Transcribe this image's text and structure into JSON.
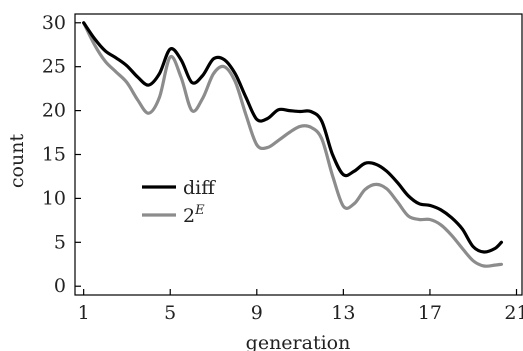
{
  "chart_data": {
    "type": "line",
    "xlabel": "generation",
    "ylabel": "count",
    "xlim": [
      0.6,
      21.3
    ],
    "ylim": [
      -1,
      31
    ],
    "xticks": [
      1,
      5,
      9,
      13,
      17,
      21
    ],
    "yticks": [
      0,
      5,
      10,
      15,
      20,
      25,
      30
    ],
    "grid": false,
    "legend_position": "center-left",
    "series": [
      {
        "name": "diff",
        "color": "#000000",
        "points": [
          [
            1,
            30
          ],
          [
            1.5,
            28.2
          ],
          [
            2,
            26.8
          ],
          [
            2.5,
            26
          ],
          [
            3,
            25.1
          ],
          [
            3.5,
            23.8
          ],
          [
            4,
            22.9
          ],
          [
            4.5,
            24.2
          ],
          [
            5,
            27.0
          ],
          [
            5.5,
            25.8
          ],
          [
            6,
            23.2
          ],
          [
            6.5,
            24.0
          ],
          [
            7,
            25.9
          ],
          [
            7.5,
            25.8
          ],
          [
            8,
            24.2
          ],
          [
            8.5,
            21.5
          ],
          [
            9,
            19.0
          ],
          [
            9.5,
            19.1
          ],
          [
            10,
            20.1
          ],
          [
            10.5,
            20.0
          ],
          [
            11,
            19.9
          ],
          [
            11.5,
            19.9
          ],
          [
            12,
            18.8
          ],
          [
            12.5,
            15.0
          ],
          [
            13,
            12.7
          ],
          [
            13.5,
            13.1
          ],
          [
            14,
            14.0
          ],
          [
            14.5,
            13.9
          ],
          [
            15,
            13.1
          ],
          [
            15.5,
            11.8
          ],
          [
            16,
            10.3
          ],
          [
            16.5,
            9.4
          ],
          [
            17,
            9.2
          ],
          [
            17.5,
            8.7
          ],
          [
            18,
            7.8
          ],
          [
            18.5,
            6.5
          ],
          [
            19,
            4.5
          ],
          [
            19.5,
            3.9
          ],
          [
            20,
            4.3
          ],
          [
            20.3,
            5.0
          ]
        ]
      },
      {
        "name": "2^E",
        "color": "#8c8c8c",
        "points": [
          [
            1,
            30
          ],
          [
            1.5,
            27.5
          ],
          [
            2,
            25.6
          ],
          [
            2.5,
            24.4
          ],
          [
            3,
            23.2
          ],
          [
            3.5,
            21.2
          ],
          [
            4,
            19.7
          ],
          [
            4.5,
            21.5
          ],
          [
            5,
            26.1
          ],
          [
            5.5,
            23.8
          ],
          [
            6,
            20.0
          ],
          [
            6.5,
            21.4
          ],
          [
            7,
            24.2
          ],
          [
            7.5,
            25.0
          ],
          [
            8,
            23.3
          ],
          [
            8.5,
            19.5
          ],
          [
            9,
            16.1
          ],
          [
            9.5,
            15.8
          ],
          [
            10,
            16.6
          ],
          [
            10.5,
            17.5
          ],
          [
            11,
            18.2
          ],
          [
            11.5,
            18.1
          ],
          [
            12,
            16.8
          ],
          [
            12.5,
            12.6
          ],
          [
            13,
            9.1
          ],
          [
            13.5,
            9.4
          ],
          [
            14,
            11.0
          ],
          [
            14.5,
            11.6
          ],
          [
            15,
            11.1
          ],
          [
            15.5,
            9.6
          ],
          [
            16,
            8.0
          ],
          [
            16.5,
            7.6
          ],
          [
            17,
            7.6
          ],
          [
            17.5,
            7.0
          ],
          [
            18,
            5.8
          ],
          [
            18.5,
            4.3
          ],
          [
            19,
            2.9
          ],
          [
            19.5,
            2.3
          ],
          [
            20,
            2.4
          ],
          [
            20.3,
            2.5
          ]
        ]
      }
    ]
  }
}
